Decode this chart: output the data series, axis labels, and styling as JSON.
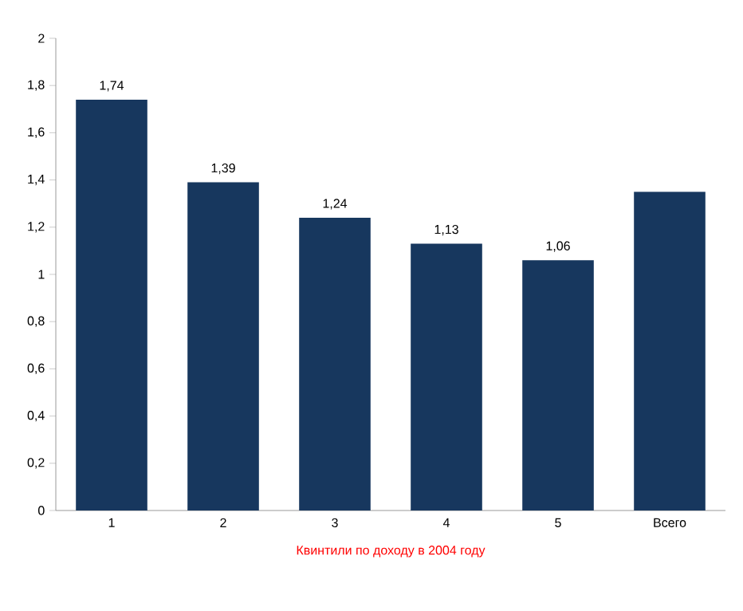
{
  "chart_data": {
    "type": "bar",
    "categories": [
      "1",
      "2",
      "3",
      "4",
      "5",
      "Всего"
    ],
    "values": [
      1.74,
      1.39,
      1.24,
      1.13,
      1.06,
      1.35
    ],
    "value_labels": [
      "1,74",
      "1,39",
      "1,24",
      "1,13",
      "1,06",
      null
    ],
    "color": "#17375e",
    "xlabel": "Квинтили по доходу в 2004 году",
    "ylim": [
      0,
      2
    ],
    "yticks": [
      0,
      {
        "value": 0.2,
        "label": "0,2"
      },
      {
        "value": 0.4,
        "label": "0,4"
      },
      {
        "value": 0.6,
        "label": "0,6"
      },
      {
        "value": 0.8,
        "label": "0,8"
      },
      1,
      {
        "value": 1.2,
        "label": "1,2"
      },
      {
        "value": 1.4,
        "label": "1,4"
      },
      {
        "value": 1.6,
        "label": "1,6"
      },
      {
        "value": 1.8,
        "label": "1,8"
      },
      2
    ]
  }
}
